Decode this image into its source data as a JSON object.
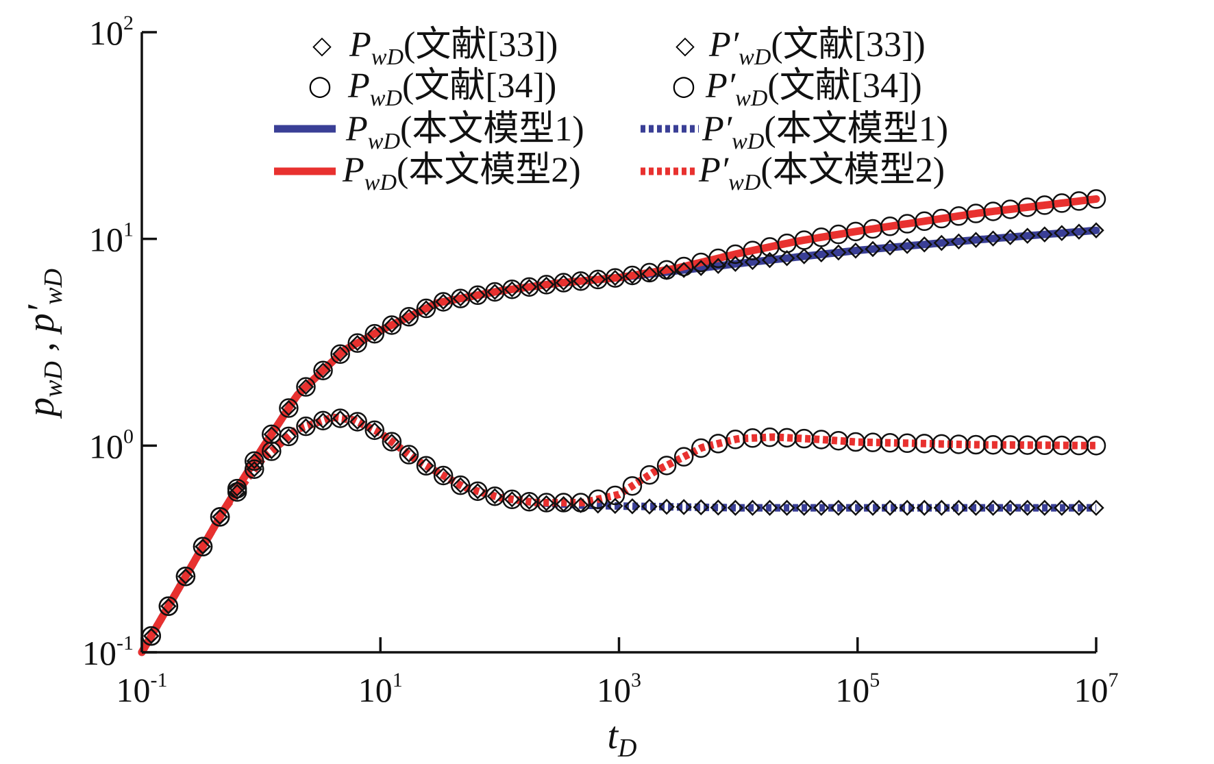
{
  "chart_data": {
    "type": "line",
    "scale": "log-log",
    "xlabel": {
      "main": "t",
      "sub": "D"
    },
    "ylabel": {
      "main1": "p",
      "sub1": "wD",
      "sep": " , ",
      "main2": "p′",
      "sub2": "wD"
    },
    "xlim": [
      0.1,
      10000000
    ],
    "ylim": [
      0.1,
      100
    ],
    "x_ticks": [
      {
        "base": "10",
        "exp": "-1",
        "value": 0.1
      },
      {
        "base": "10",
        "exp": "1",
        "value": 10
      },
      {
        "base": "10",
        "exp": "3",
        "value": 1000
      },
      {
        "base": "10",
        "exp": "5",
        "value": 100000
      },
      {
        "base": "10",
        "exp": "7",
        "value": 10000000
      }
    ],
    "y_ticks": [
      {
        "base": "10",
        "exp": "-1",
        "value": 0.1
      },
      {
        "base": "10",
        "exp": "0",
        "value": 1
      },
      {
        "base": "10",
        "exp": "1",
        "value": 10
      },
      {
        "base": "10",
        "exp": "2",
        "value": 100
      }
    ],
    "legend": {
      "placement": "top",
      "entries": [
        {
          "key": "pwd_ref33",
          "symbol": "◇",
          "main": "P",
          "sub": "wD",
          "text": "(文献[33])"
        },
        {
          "key": "dpwd_ref33",
          "symbol": "◇",
          "main": "P′",
          "sub": "wD",
          "text": "(文献[33])"
        },
        {
          "key": "pwd_ref34",
          "symbol": "○",
          "main": "P",
          "sub": "wD",
          "text": "(文献[34])"
        },
        {
          "key": "dpwd_ref34",
          "symbol": "○",
          "main": "P′",
          "sub": "wD",
          "text": "(文献[34])"
        },
        {
          "key": "pwd_model1",
          "symbol": "solid-line",
          "main": "P",
          "sub": "wD",
          "text": "(本文模型1)"
        },
        {
          "key": "dpwd_model1",
          "symbol": "dotted-line",
          "main": "P′",
          "sub": "wD",
          "text": "(本文模型1)"
        },
        {
          "key": "pwd_model2",
          "symbol": "solid-line",
          "main": "P",
          "sub": "wD",
          "text": "(本文模型2)"
        },
        {
          "key": "dpwd_model2",
          "symbol": "dotted-line",
          "main": "P′",
          "sub": "wD",
          "text": "(本文模型2)"
        }
      ]
    },
    "colors": {
      "model1": "#3a3f96",
      "model2": "#e8312f",
      "marker": "#111111",
      "axis": "#111111"
    },
    "series": [
      {
        "name": "pwd_model1",
        "style": "solid",
        "color": "#3a3f96",
        "x": [
          0.1,
          0.2,
          0.5,
          1,
          2,
          5,
          10,
          30,
          100,
          300,
          1000,
          3000,
          10000,
          100000,
          1000000,
          10000000
        ],
        "y": [
          0.1,
          0.2,
          0.5,
          0.95,
          1.75,
          2.9,
          3.6,
          4.9,
          5.6,
          6.1,
          6.5,
          7.0,
          7.6,
          8.8,
          9.9,
          11.0
        ]
      },
      {
        "name": "dpwd_model1",
        "style": "dotted",
        "color": "#3a3f96",
        "x": [
          0.1,
          0.2,
          0.5,
          1,
          2,
          4,
          6,
          10,
          20,
          50,
          100,
          200,
          500,
          1000,
          10000,
          100000,
          1000000,
          10000000
        ],
        "y": [
          0.1,
          0.2,
          0.5,
          0.85,
          1.2,
          1.37,
          1.33,
          1.15,
          0.85,
          0.63,
          0.56,
          0.53,
          0.515,
          0.51,
          0.5,
          0.5,
          0.5,
          0.5
        ]
      },
      {
        "name": "pwd_model2",
        "style": "solid",
        "color": "#e8312f",
        "x": [
          0.1,
          0.2,
          0.5,
          1,
          2,
          5,
          10,
          30,
          100,
          300,
          1000,
          3000,
          10000,
          30000,
          100000,
          1000000,
          10000000
        ],
        "y": [
          0.1,
          0.2,
          0.5,
          0.95,
          1.75,
          2.9,
          3.6,
          4.9,
          5.6,
          6.1,
          6.5,
          7.2,
          8.5,
          9.7,
          10.9,
          13.3,
          15.6
        ]
      },
      {
        "name": "dpwd_model2",
        "style": "dotted",
        "color": "#e8312f",
        "x": [
          0.1,
          0.2,
          0.5,
          1,
          2,
          4,
          6,
          10,
          20,
          50,
          100,
          200,
          500,
          1000,
          2000,
          5000,
          10000,
          20000,
          50000,
          100000,
          1000000,
          10000000
        ],
        "y": [
          0.1,
          0.2,
          0.5,
          0.85,
          1.2,
          1.37,
          1.33,
          1.15,
          0.85,
          0.63,
          0.56,
          0.53,
          0.53,
          0.58,
          0.75,
          0.98,
          1.08,
          1.1,
          1.07,
          1.04,
          1.01,
          1.0
        ]
      }
    ],
    "markers": [
      {
        "name": "pwd_ref33",
        "shape": "diamond",
        "follows": "pwd_model1",
        "x_range": [
          0.12,
          10000000
        ],
        "count": 56
      },
      {
        "name": "dpwd_ref33",
        "shape": "diamond",
        "follows": "dpwd_model1",
        "x_range": [
          0.12,
          10000000
        ],
        "count": 56
      },
      {
        "name": "pwd_ref34",
        "shape": "circle",
        "follows": "pwd_model2",
        "x_range": [
          0.12,
          10000000
        ],
        "count": 56
      },
      {
        "name": "dpwd_ref34",
        "shape": "circle",
        "follows": "dpwd_model2",
        "x_range": [
          0.12,
          10000000
        ],
        "count": 56
      }
    ]
  }
}
